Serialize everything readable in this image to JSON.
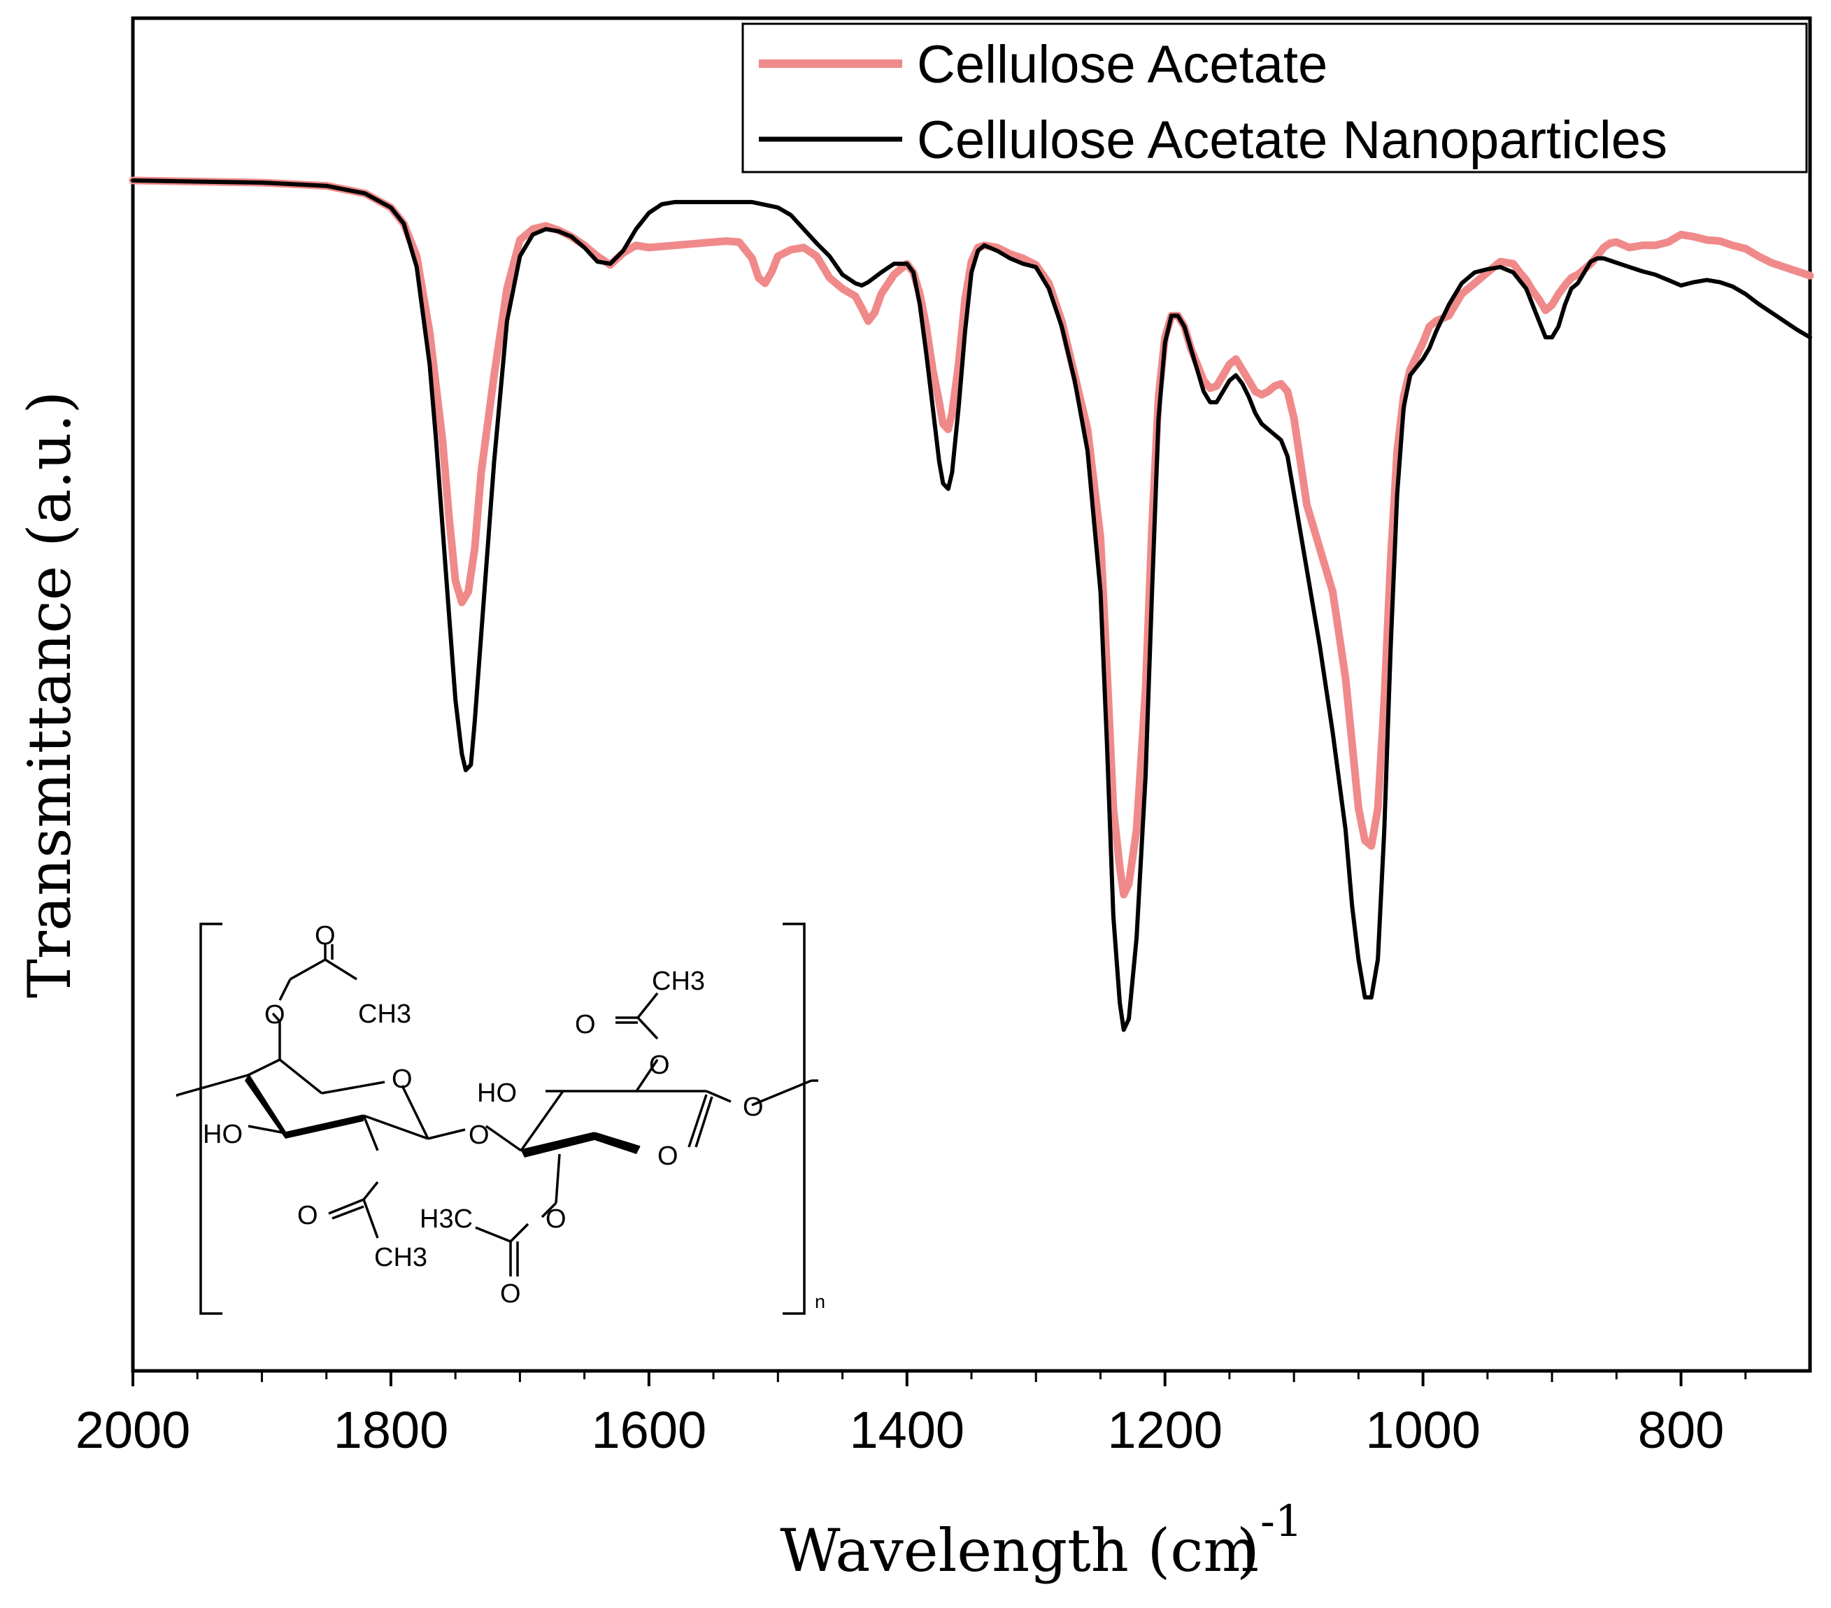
{
  "chart_data": {
    "type": "line",
    "xlabel": "Wavelength (cm",
    "xlabel_superscript": "-1",
    "xlabel_close": ")",
    "ylabel": "Transmittance (a.u.)",
    "xlim": [
      2000,
      700
    ],
    "ylim": [
      0,
      100
    ],
    "x_reversed": true,
    "x_ticks": [
      2000,
      1800,
      1600,
      1400,
      1200,
      1000,
      800
    ],
    "y_tick_labels": false,
    "grid": false,
    "legend_position": "top-right",
    "series": [
      {
        "name": "Cellulose Acetate",
        "color": "#f08a8a",
        "points": [
          [
            2000,
            100
          ],
          [
            1900,
            99.8
          ],
          [
            1850,
            99.5
          ],
          [
            1820,
            98.8
          ],
          [
            1800,
            97.5
          ],
          [
            1790,
            96
          ],
          [
            1780,
            93
          ],
          [
            1770,
            86
          ],
          [
            1760,
            76
          ],
          [
            1755,
            69
          ],
          [
            1750,
            63
          ],
          [
            1745,
            61
          ],
          [
            1740,
            62
          ],
          [
            1735,
            66
          ],
          [
            1730,
            73
          ],
          [
            1720,
            82
          ],
          [
            1710,
            90
          ],
          [
            1700,
            94.5
          ],
          [
            1690,
            95.5
          ],
          [
            1680,
            95.8
          ],
          [
            1670,
            95.4
          ],
          [
            1660,
            94.8
          ],
          [
            1650,
            94
          ],
          [
            1640,
            93
          ],
          [
            1630,
            92.2
          ],
          [
            1620,
            93.3
          ],
          [
            1610,
            94
          ],
          [
            1600,
            93.8
          ],
          [
            1580,
            94
          ],
          [
            1560,
            94.2
          ],
          [
            1540,
            94.4
          ],
          [
            1530,
            94.3
          ],
          [
            1520,
            92.8
          ],
          [
            1515,
            91
          ],
          [
            1510,
            90.5
          ],
          [
            1505,
            91.5
          ],
          [
            1500,
            93
          ],
          [
            1490,
            93.6
          ],
          [
            1480,
            93.8
          ],
          [
            1470,
            93
          ],
          [
            1460,
            91
          ],
          [
            1450,
            90
          ],
          [
            1440,
            89.3
          ],
          [
            1435,
            88.2
          ],
          [
            1430,
            87
          ],
          [
            1425,
            87.8
          ],
          [
            1420,
            89.5
          ],
          [
            1410,
            91.3
          ],
          [
            1400,
            92.3
          ],
          [
            1395,
            91.5
          ],
          [
            1390,
            89.5
          ],
          [
            1385,
            86.5
          ],
          [
            1380,
            82.5
          ],
          [
            1375,
            79.5
          ],
          [
            1372,
            77.5
          ],
          [
            1368,
            77
          ],
          [
            1365,
            78.5
          ],
          [
            1360,
            83
          ],
          [
            1355,
            89
          ],
          [
            1350,
            92.5
          ],
          [
            1345,
            93.8
          ],
          [
            1340,
            94
          ],
          [
            1330,
            93.8
          ],
          [
            1320,
            93.2
          ],
          [
            1310,
            92.8
          ],
          [
            1300,
            92.2
          ],
          [
            1290,
            90.5
          ],
          [
            1280,
            87
          ],
          [
            1270,
            82
          ],
          [
            1260,
            77
          ],
          [
            1250,
            67
          ],
          [
            1245,
            55
          ],
          [
            1240,
            42
          ],
          [
            1235,
            36.5
          ],
          [
            1232,
            34
          ],
          [
            1228,
            35
          ],
          [
            1222,
            40
          ],
          [
            1215,
            53
          ],
          [
            1210,
            68
          ],
          [
            1205,
            80
          ],
          [
            1200,
            85.5
          ],
          [
            1195,
            87.5
          ],
          [
            1190,
            87.5
          ],
          [
            1185,
            86.5
          ],
          [
            1180,
            84.5
          ],
          [
            1175,
            83
          ],
          [
            1170,
            81.5
          ],
          [
            1165,
            80.8
          ],
          [
            1160,
            81
          ],
          [
            1155,
            82
          ],
          [
            1150,
            83
          ],
          [
            1145,
            83.5
          ],
          [
            1140,
            82.5
          ],
          [
            1135,
            81.5
          ],
          [
            1130,
            80.5
          ],
          [
            1125,
            80.2
          ],
          [
            1120,
            80.5
          ],
          [
            1115,
            81
          ],
          [
            1110,
            81.2
          ],
          [
            1105,
            80.5
          ],
          [
            1100,
            78
          ],
          [
            1095,
            74
          ],
          [
            1090,
            70
          ],
          [
            1080,
            66
          ],
          [
            1070,
            62
          ],
          [
            1060,
            54
          ],
          [
            1055,
            48
          ],
          [
            1050,
            42
          ],
          [
            1045,
            39
          ],
          [
            1040,
            38.5
          ],
          [
            1035,
            42
          ],
          [
            1030,
            52
          ],
          [
            1025,
            65
          ],
          [
            1020,
            75
          ],
          [
            1015,
            80
          ],
          [
            1010,
            82.5
          ],
          [
            1000,
            85
          ],
          [
            995,
            86.5
          ],
          [
            990,
            87
          ],
          [
            980,
            87.5
          ],
          [
            975,
            88.5
          ],
          [
            970,
            89.5
          ],
          [
            960,
            90.5
          ],
          [
            950,
            91.5
          ],
          [
            940,
            92.5
          ],
          [
            930,
            92.3
          ],
          [
            925,
            91.5
          ],
          [
            920,
            90.8
          ],
          [
            915,
            89.8
          ],
          [
            910,
            89
          ],
          [
            905,
            88
          ],
          [
            900,
            88.5
          ],
          [
            895,
            89.5
          ],
          [
            890,
            90.3
          ],
          [
            885,
            91
          ],
          [
            880,
            91.3
          ],
          [
            875,
            91.8
          ],
          [
            870,
            92.3
          ],
          [
            865,
            93
          ],
          [
            860,
            93.8
          ],
          [
            855,
            94.2
          ],
          [
            850,
            94.3
          ],
          [
            840,
            93.8
          ],
          [
            830,
            94
          ],
          [
            820,
            94
          ],
          [
            810,
            94.3
          ],
          [
            800,
            95
          ],
          [
            790,
            94.8
          ],
          [
            780,
            94.5
          ],
          [
            770,
            94.4
          ],
          [
            760,
            94
          ],
          [
            750,
            93.7
          ],
          [
            740,
            93
          ],
          [
            730,
            92.4
          ],
          [
            720,
            92
          ],
          [
            710,
            91.6
          ],
          [
            700,
            91.2
          ]
        ]
      },
      {
        "name": "Cellulose Acetate Nanoparticles",
        "color": "#000000",
        "points": [
          [
            2000,
            100
          ],
          [
            1900,
            99.8
          ],
          [
            1850,
            99.5
          ],
          [
            1820,
            98.8
          ],
          [
            1800,
            97.5
          ],
          [
            1790,
            96
          ],
          [
            1780,
            92
          ],
          [
            1770,
            83
          ],
          [
            1765,
            76
          ],
          [
            1760,
            68
          ],
          [
            1755,
            60
          ],
          [
            1750,
            52
          ],
          [
            1745,
            47
          ],
          [
            1742,
            45.5
          ],
          [
            1738,
            46
          ],
          [
            1735,
            50
          ],
          [
            1730,
            58
          ],
          [
            1720,
            74
          ],
          [
            1710,
            87
          ],
          [
            1700,
            93
          ],
          [
            1690,
            95
          ],
          [
            1680,
            95.5
          ],
          [
            1670,
            95.3
          ],
          [
            1660,
            94.8
          ],
          [
            1650,
            93.8
          ],
          [
            1640,
            92.5
          ],
          [
            1630,
            92.3
          ],
          [
            1620,
            93.5
          ],
          [
            1610,
            95.5
          ],
          [
            1600,
            97
          ],
          [
            1590,
            97.8
          ],
          [
            1580,
            98
          ],
          [
            1560,
            98
          ],
          [
            1540,
            98
          ],
          [
            1520,
            98
          ],
          [
            1500,
            97.5
          ],
          [
            1490,
            96.8
          ],
          [
            1480,
            95.5
          ],
          [
            1470,
            94.2
          ],
          [
            1460,
            93
          ],
          [
            1450,
            91.3
          ],
          [
            1440,
            90.5
          ],
          [
            1435,
            90.3
          ],
          [
            1430,
            90.6
          ],
          [
            1420,
            91.5
          ],
          [
            1410,
            92.3
          ],
          [
            1400,
            92.3
          ],
          [
            1395,
            91.5
          ],
          [
            1390,
            88.5
          ],
          [
            1385,
            84
          ],
          [
            1380,
            79
          ],
          [
            1375,
            74
          ],
          [
            1372,
            72
          ],
          [
            1368,
            71.5
          ],
          [
            1365,
            73
          ],
          [
            1360,
            79
          ],
          [
            1355,
            86
          ],
          [
            1350,
            91.5
          ],
          [
            1345,
            93.5
          ],
          [
            1340,
            94
          ],
          [
            1330,
            93.5
          ],
          [
            1320,
            92.8
          ],
          [
            1310,
            92.3
          ],
          [
            1300,
            92
          ],
          [
            1290,
            90
          ],
          [
            1280,
            86.5
          ],
          [
            1270,
            81.5
          ],
          [
            1260,
            75
          ],
          [
            1250,
            62
          ],
          [
            1245,
            48
          ],
          [
            1240,
            32
          ],
          [
            1235,
            24
          ],
          [
            1232,
            21.5
          ],
          [
            1228,
            22.5
          ],
          [
            1222,
            30
          ],
          [
            1215,
            45
          ],
          [
            1210,
            62
          ],
          [
            1205,
            78
          ],
          [
            1200,
            85
          ],
          [
            1195,
            87.5
          ],
          [
            1190,
            87.5
          ],
          [
            1185,
            86.5
          ],
          [
            1180,
            84.5
          ],
          [
            1175,
            82.5
          ],
          [
            1170,
            80.5
          ],
          [
            1165,
            79.5
          ],
          [
            1160,
            79.5
          ],
          [
            1155,
            80.5
          ],
          [
            1150,
            81.5
          ],
          [
            1145,
            82
          ],
          [
            1140,
            81.2
          ],
          [
            1135,
            80
          ],
          [
            1130,
            78.5
          ],
          [
            1125,
            77.5
          ],
          [
            1120,
            77
          ],
          [
            1115,
            76.5
          ],
          [
            1110,
            76
          ],
          [
            1105,
            74.5
          ],
          [
            1100,
            71
          ],
          [
            1090,
            64
          ],
          [
            1080,
            57
          ],
          [
            1070,
            49
          ],
          [
            1060,
            40
          ],
          [
            1055,
            33
          ],
          [
            1050,
            28
          ],
          [
            1045,
            24.5
          ],
          [
            1040,
            24.5
          ],
          [
            1035,
            28
          ],
          [
            1030,
            40
          ],
          [
            1025,
            57
          ],
          [
            1020,
            71
          ],
          [
            1015,
            79
          ],
          [
            1010,
            82
          ],
          [
            1000,
            83.5
          ],
          [
            995,
            84.5
          ],
          [
            990,
            86
          ],
          [
            980,
            88.5
          ],
          [
            970,
            90.5
          ],
          [
            960,
            91.5
          ],
          [
            950,
            91.8
          ],
          [
            940,
            92
          ],
          [
            930,
            91.5
          ],
          [
            920,
            90
          ],
          [
            915,
            88.5
          ],
          [
            910,
            87
          ],
          [
            905,
            85.5
          ],
          [
            900,
            85.5
          ],
          [
            895,
            86.5
          ],
          [
            890,
            88.5
          ],
          [
            885,
            90
          ],
          [
            880,
            90.5
          ],
          [
            875,
            91.5
          ],
          [
            870,
            92.5
          ],
          [
            865,
            92.8
          ],
          [
            860,
            92.8
          ],
          [
            850,
            92.4
          ],
          [
            840,
            92
          ],
          [
            830,
            91.6
          ],
          [
            820,
            91.3
          ],
          [
            810,
            90.8
          ],
          [
            800,
            90.3
          ],
          [
            790,
            90.6
          ],
          [
            780,
            90.8
          ],
          [
            770,
            90.6
          ],
          [
            760,
            90.2
          ],
          [
            750,
            89.5
          ],
          [
            740,
            88.6
          ],
          [
            730,
            87.8
          ],
          [
            720,
            87
          ],
          [
            710,
            86.2
          ],
          [
            700,
            85.5
          ]
        ]
      }
    ],
    "inset": {
      "type": "chemical-structure",
      "description_labels": [
        "O",
        "CH3",
        "HO",
        "O",
        "O",
        "O",
        "HO",
        "CH3",
        "O",
        "O",
        "O",
        "O",
        "H3C",
        "O",
        "O",
        "CH3",
        "O",
        "n"
      ]
    }
  }
}
